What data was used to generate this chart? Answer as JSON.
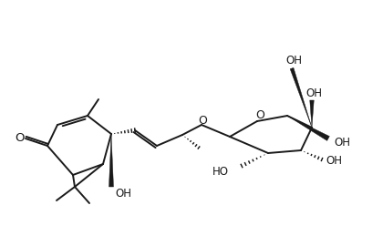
{
  "background": "#ffffff",
  "line_color": "#1a1a1a",
  "line_width": 1.4,
  "font_size": 8.5,
  "fig_width": 4.2,
  "fig_height": 2.59,
  "dpi": 100,
  "xlim": [
    0,
    420
  ],
  "ylim": [
    0,
    259
  ]
}
